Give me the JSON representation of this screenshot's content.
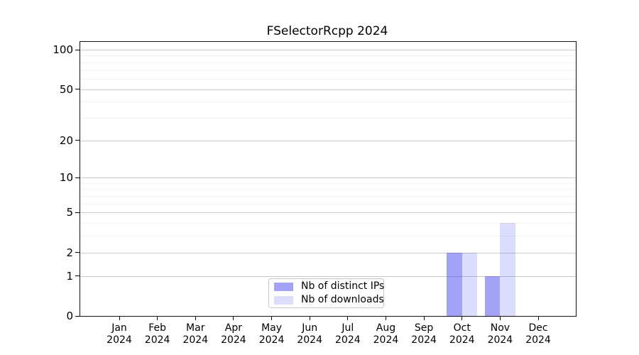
{
  "chart_data": {
    "type": "bar",
    "title": "FSelectorRcpp 2024",
    "categories": [
      "Jan",
      "Feb",
      "Mar",
      "Apr",
      "May",
      "Jun",
      "Jul",
      "Aug",
      "Sep",
      "Oct",
      "Nov",
      "Dec"
    ],
    "year_label": "2024",
    "series": [
      {
        "name": "Nb of distinct IPs",
        "color": "rgba(70,70,240,0.5)",
        "values": [
          0,
          0,
          0,
          0,
          0,
          0,
          0,
          0,
          0,
          2,
          1,
          0
        ]
      },
      {
        "name": "Nb of downloads",
        "color": "rgba(70,70,240,0.19)",
        "values": [
          0,
          0,
          0,
          0,
          0,
          0,
          0,
          0,
          0,
          2,
          4,
          0
        ]
      }
    ],
    "yscale": "log1p",
    "ylim": [
      0,
      113
    ],
    "y_ticks": [
      0,
      1,
      2,
      5,
      10,
      20,
      50,
      100
    ],
    "y_minor_ticks": [
      3,
      4,
      6,
      7,
      8,
      9,
      30,
      40,
      60,
      70,
      80,
      90
    ],
    "grid": true,
    "legend_position": "lower center"
  },
  "colors": {
    "axis": "#000000",
    "grid_major": "#c9c9c9",
    "grid_minor": "#f1f1f1",
    "background": "#ffffff",
    "bar_distinct_ips": "#a8a8f5",
    "bar_downloads": "#dcdcf8"
  }
}
